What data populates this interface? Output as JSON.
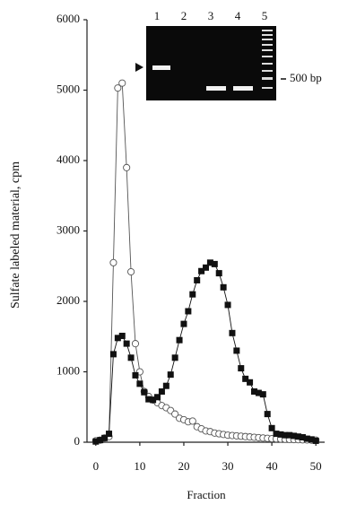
{
  "chart_data": {
    "type": "line",
    "x_label": "Fraction",
    "y_label": "Sulfate labeled material, cpm",
    "x": [
      0,
      1,
      2,
      3,
      4,
      5,
      6,
      7,
      8,
      9,
      10,
      11,
      12,
      13,
      14,
      15,
      16,
      17,
      18,
      19,
      20,
      21,
      22,
      23,
      24,
      25,
      26,
      27,
      28,
      29,
      30,
      31,
      32,
      33,
      34,
      35,
      36,
      37,
      38,
      39,
      40,
      41,
      42,
      43,
      44,
      45,
      46,
      47,
      48,
      49,
      50
    ],
    "series": [
      {
        "marker": "filled-square",
        "color": "#111111",
        "values": [
          10,
          30,
          60,
          120,
          1250,
          1480,
          1510,
          1400,
          1200,
          950,
          830,
          710,
          610,
          600,
          640,
          720,
          800,
          960,
          1200,
          1450,
          1680,
          1860,
          2100,
          2300,
          2430,
          2480,
          2550,
          2530,
          2400,
          2200,
          1950,
          1550,
          1300,
          1050,
          900,
          850,
          720,
          700,
          680,
          400,
          200,
          120,
          110,
          100,
          100,
          90,
          80,
          70,
          50,
          40,
          20
        ]
      },
      {
        "marker": "open-circle",
        "color": "#555555",
        "values": [
          20,
          30,
          60,
          80,
          2550,
          5030,
          5100,
          3900,
          2420,
          1400,
          1000,
          720,
          650,
          600,
          560,
          520,
          490,
          450,
          400,
          340,
          320,
          290,
          300,
          220,
          190,
          160,
          150,
          130,
          120,
          110,
          100,
          95,
          90,
          85,
          80,
          75,
          70,
          65,
          60,
          55,
          50,
          48,
          45,
          42,
          40,
          38,
          36,
          34,
          32,
          30,
          30
        ]
      }
    ],
    "xlim": [
      -2,
      52
    ],
    "ylim": [
      0,
      6000
    ],
    "xticks": [
      0,
      10,
      20,
      30,
      40,
      50
    ],
    "yticks": [
      0,
      1000,
      2000,
      3000,
      4000,
      5000,
      6000
    ],
    "inset": {
      "lanes": [
        "1",
        "2",
        "3",
        "4",
        "5"
      ],
      "marker_label": "500 bp"
    }
  }
}
